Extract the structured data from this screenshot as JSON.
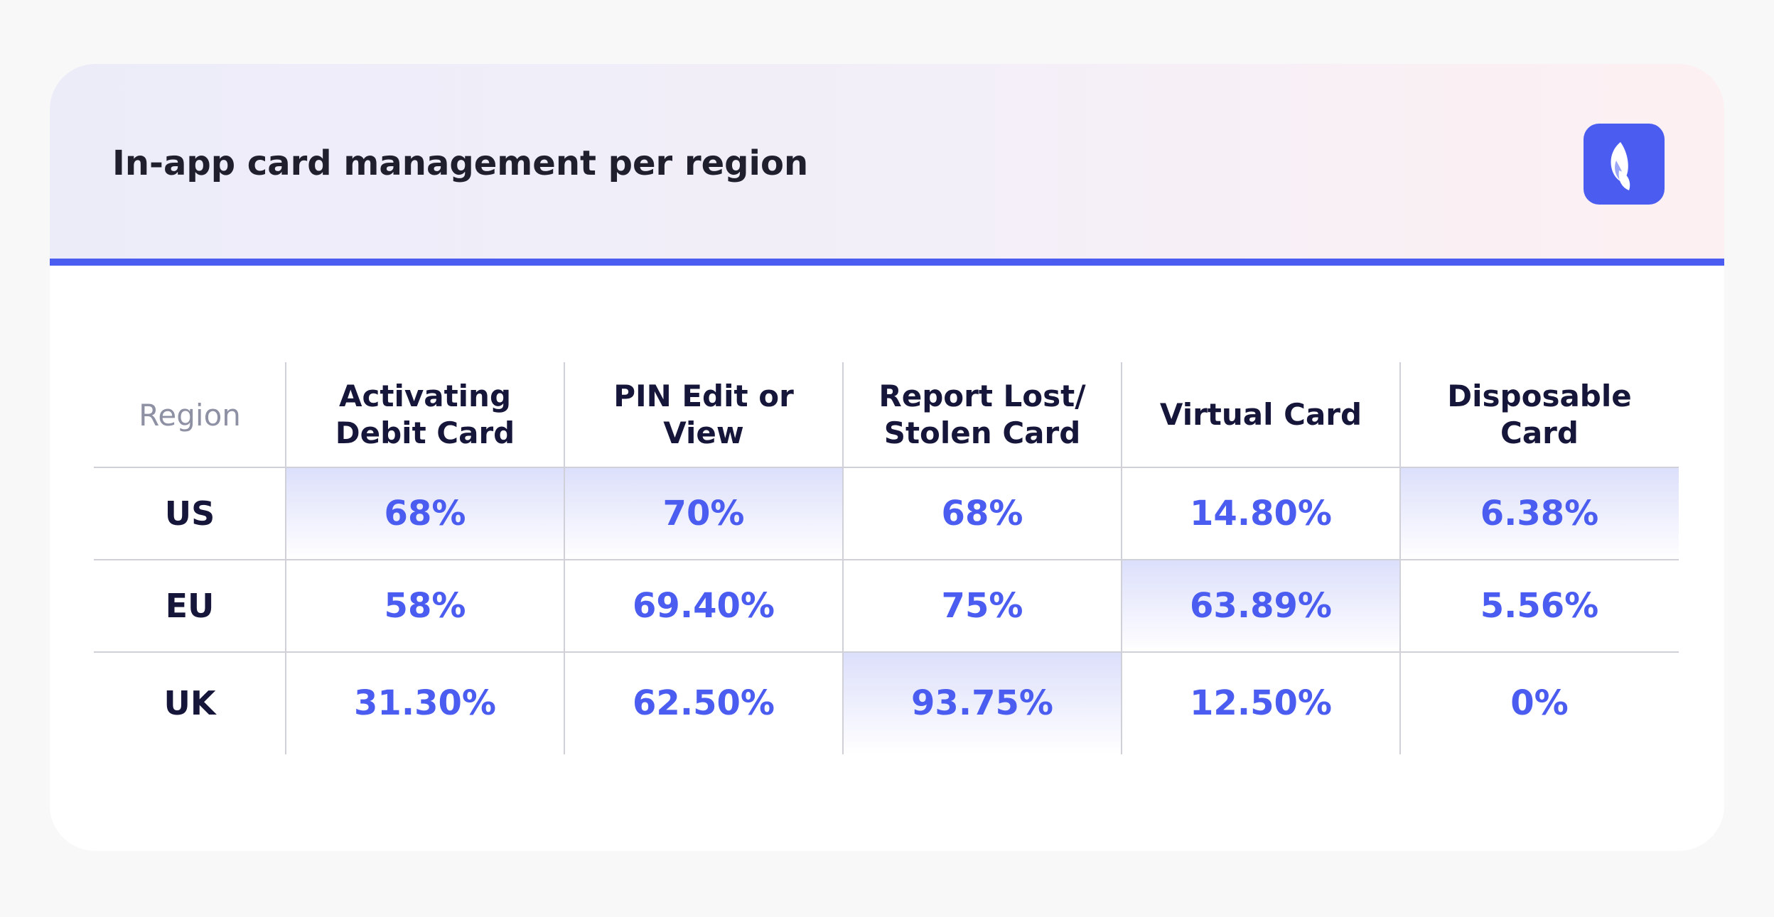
{
  "chart_data": {
    "type": "table",
    "title": "In-app card management per region",
    "columns": [
      "Region",
      "Activating Debit Card",
      "PIN Edit or View",
      "Report Lost/ Stolen Card",
      "Virtual Card",
      "Disposable Card"
    ],
    "rows": [
      {
        "region": "US",
        "values": [
          "68%",
          "70%",
          "68%",
          "14.80%",
          "6.38%"
        ],
        "highlight": [
          true,
          true,
          false,
          false,
          true
        ]
      },
      {
        "region": "EU",
        "values": [
          "58%",
          "69.40%",
          "75%",
          "63.89%",
          "5.56%"
        ],
        "highlight": [
          false,
          false,
          false,
          true,
          false
        ]
      },
      {
        "region": "UK",
        "values": [
          "31.30%",
          "62.50%",
          "93.75%",
          "12.50%",
          "0%"
        ],
        "highlight": [
          false,
          false,
          true,
          false,
          false
        ]
      }
    ]
  },
  "colors": {
    "accent": "#4b5cf0",
    "highlight": "#dcdffb",
    "heading_text": "#16163a",
    "muted_text": "#8e90a4"
  },
  "logo": {
    "icon": "brand-leaf-icon"
  }
}
